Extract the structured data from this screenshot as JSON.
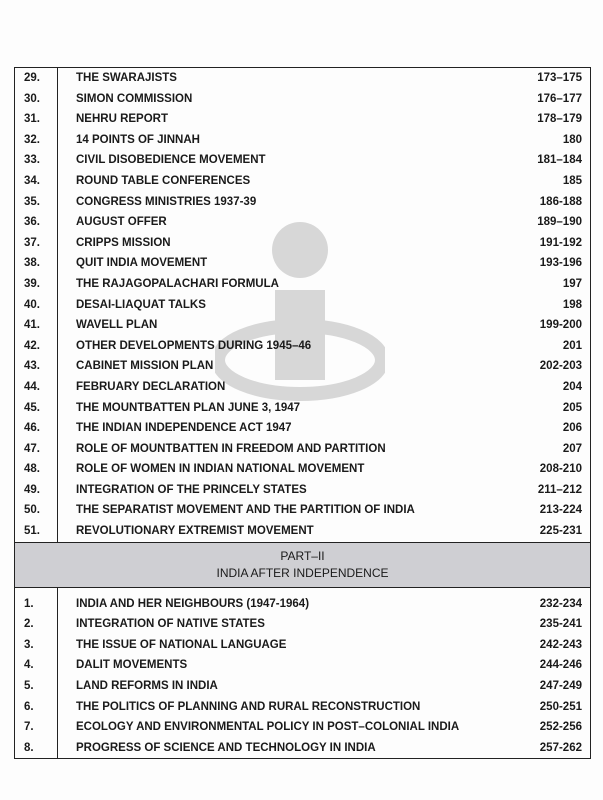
{
  "part1_rows": [
    {
      "num": "29.",
      "title": "THE SWARAJISTS",
      "pages": "173–175"
    },
    {
      "num": "30.",
      "title": "SIMON COMMISSION",
      "pages": "176–177"
    },
    {
      "num": "31.",
      "title": "NEHRU REPORT",
      "pages": "178–179"
    },
    {
      "num": "32.",
      "title": "14 POINTS OF JINNAH",
      "pages": "180"
    },
    {
      "num": "33.",
      "title": "CIVIL DISOBEDIENCE MOVEMENT",
      "pages": "181–184"
    },
    {
      "num": "34.",
      "title": "ROUND TABLE CONFERENCES",
      "pages": "185"
    },
    {
      "num": "35.",
      "title": "CONGRESS MINISTRIES 1937-39",
      "pages": "186-188"
    },
    {
      "num": "36.",
      "title": "AUGUST OFFER",
      "pages": "189–190"
    },
    {
      "num": "37.",
      "title": "CRIPPS MISSION",
      "pages": "191-192"
    },
    {
      "num": "38.",
      "title": "QUIT INDIA MOVEMENT",
      "pages": "193-196"
    },
    {
      "num": "39.",
      "title": "THE RAJAGOPALACHARI FORMULA",
      "pages": "197"
    },
    {
      "num": "40.",
      "title": "DESAI-LIAQUAT TALKS",
      "pages": "198"
    },
    {
      "num": "41.",
      "title": "WAVELL PLAN",
      "pages": "199-200"
    },
    {
      "num": "42.",
      "title": "OTHER DEVELOPMENTS DURING 1945–46",
      "pages": "201"
    },
    {
      "num": "43.",
      "title": "CABINET MISSION PLAN",
      "pages": "202-203"
    },
    {
      "num": "44.",
      "title": "FEBRUARY DECLARATION",
      "pages": "204"
    },
    {
      "num": "45.",
      "title": "THE MOUNTBATTEN PLAN JUNE 3, 1947",
      "pages": "205"
    },
    {
      "num": "46.",
      "title": "THE INDIAN INDEPENDENCE ACT 1947",
      "pages": "206"
    },
    {
      "num": "47.",
      "title": "ROLE OF MOUNTBATTEN IN FREEDOM AND PARTITION",
      "pages": "207"
    },
    {
      "num": "48.",
      "title": "ROLE OF WOMEN IN INDIAN NATIONAL MOVEMENT",
      "pages": "208-210"
    },
    {
      "num": "49.",
      "title": "INTEGRATION OF THE PRINCELY STATES",
      "pages": "211–212"
    },
    {
      "num": "50.",
      "title": "THE SEPARATIST MOVEMENT AND THE PARTITION OF INDIA",
      "pages": "213-224"
    },
    {
      "num": "51.",
      "title": "REVOLUTIONARY EXTREMIST MOVEMENT",
      "pages": "225-231"
    }
  ],
  "part2": {
    "heading": "PART–II",
    "subheading": "INDIA AFTER INDEPENDENCE"
  },
  "part2_rows": [
    {
      "num": "1.",
      "title": "INDIA AND HER NEIGHBOURS (1947-1964)",
      "pages": "232-234"
    },
    {
      "num": "2.",
      "title": "INTEGRATION OF NATIVE STATES",
      "pages": "235-241"
    },
    {
      "num": "3.",
      "title": "THE ISSUE OF NATIONAL LANGUAGE",
      "pages": "242-243"
    },
    {
      "num": "4.",
      "title": "DALIT MOVEMENTS",
      "pages": "244-246"
    },
    {
      "num": "5.",
      "title": "LAND REFORMS IN INDIA",
      "pages": "247-249"
    },
    {
      "num": "6.",
      "title": "THE POLITICS OF PLANNING AND RURAL RECONSTRUCTION",
      "pages": "250-251"
    },
    {
      "num": "7.",
      "title": "ECOLOGY AND ENVIRONMENTAL POLICY IN POST–COLONIAL INDIA",
      "pages": "252-256"
    },
    {
      "num": "8.",
      "title": "PROGRESS OF SCIENCE AND TECHNOLOGY IN INDIA",
      "pages": "257-262"
    }
  ],
  "watermark_icon": "info-i-logo"
}
